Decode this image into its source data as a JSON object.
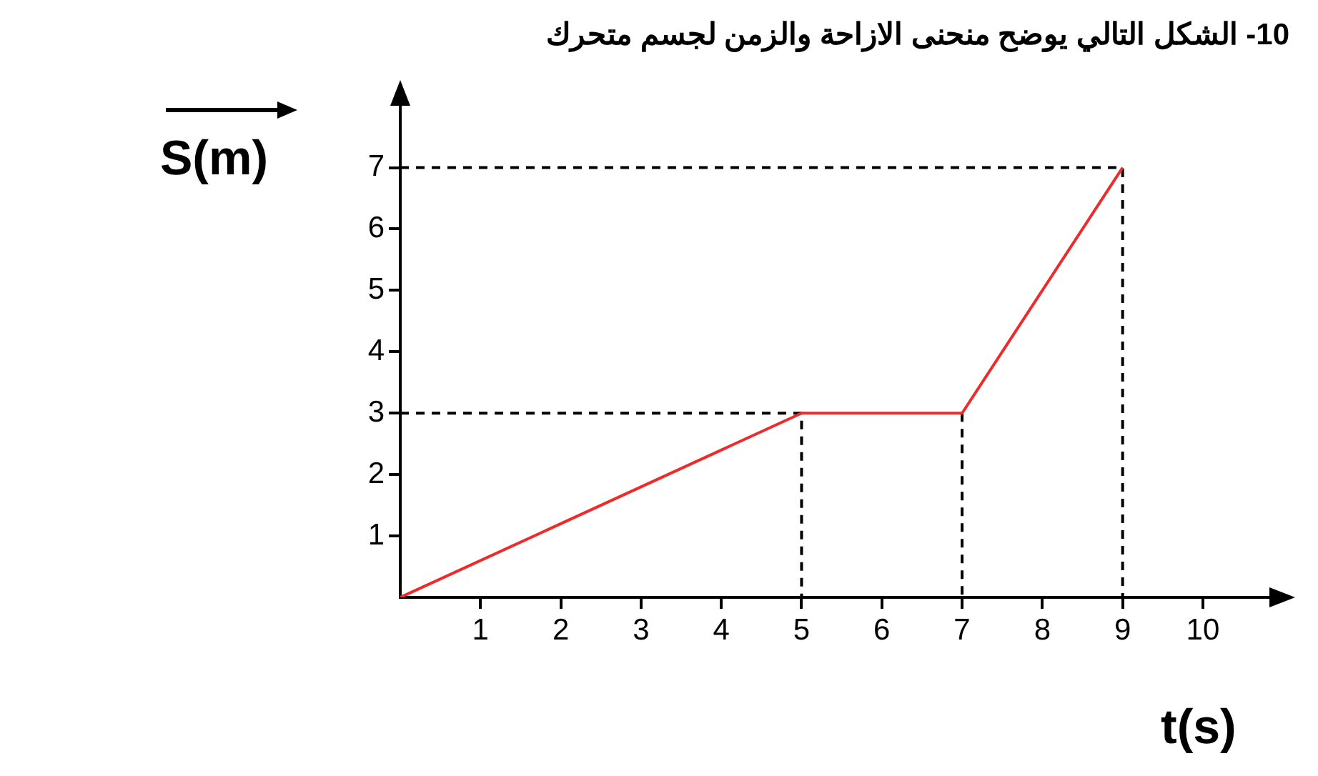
{
  "chart_data": {
    "type": "line",
    "title": "10- الشكل التالي يوضح منحنى الازاحة والزمن لجسم متحرك",
    "xlabel": "t(s)",
    "ylabel": "S(m)",
    "xlim": [
      0,
      10.9
    ],
    "ylim": [
      0,
      8.1
    ],
    "xticks": [
      1,
      2,
      3,
      4,
      5,
      6,
      7,
      8,
      9,
      10
    ],
    "yticks": [
      1,
      2,
      3,
      4,
      5,
      6,
      7
    ],
    "grid": false,
    "legend": false,
    "marker": "none",
    "series": [
      {
        "color": "#ee2b2b",
        "x": [
          0,
          5,
          7,
          9
        ],
        "values": [
          0,
          3,
          3,
          7
        ],
        "line_style": "solid"
      },
      {
        "color": "#000000",
        "x": [
          0,
          5,
          5
        ],
        "values": [
          3,
          3,
          0
        ],
        "line_style": "dashed"
      },
      {
        "color": "#000000",
        "x": [
          7,
          7
        ],
        "values": [
          3,
          0
        ],
        "line_style": "dashed"
      },
      {
        "color": "#000000",
        "x": [
          0,
          9,
          9
        ],
        "values": [
          7,
          7,
          0
        ],
        "line_style": "dashed"
      }
    ]
  }
}
